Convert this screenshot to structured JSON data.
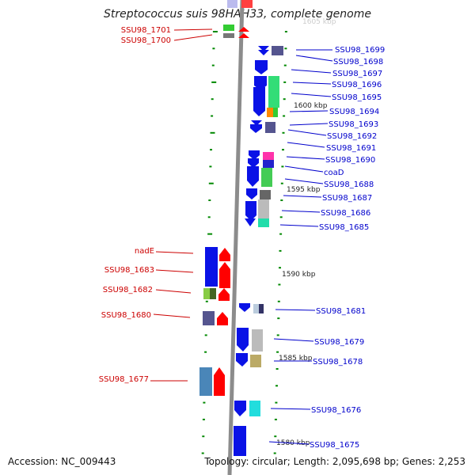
{
  "title": "Streptococcus suis 98HAH33, complete genome",
  "accession": "Accession: NC_009443",
  "topology": "Topology: circular; Length: 2,095,698 bp; Genes: 2,253",
  "axis_labels": [
    "1600 kbp",
    "1595 kbp",
    "1590 kbp",
    "1585 kbp",
    "1580 kbp",
    "1605 kbp"
  ],
  "colors": {
    "backbone": "#8c8c8c",
    "forward_gene": "#0a12e6",
    "reverse_gene": "#ff0000",
    "label_forward": "#0000cc",
    "label_reverse": "#cc0000",
    "tick": "#008800"
  },
  "genes_left": [
    {
      "label": "SSU98_1701"
    },
    {
      "label": "SSU98_1700"
    },
    {
      "label": "nadE"
    },
    {
      "label": "SSU98_1683"
    },
    {
      "label": "SSU98_1682"
    },
    {
      "label": "SSU98_1680"
    },
    {
      "label": "SSU98_1677"
    }
  ],
  "genes_right": [
    {
      "label": "SSU98_1699"
    },
    {
      "label": "SSU98_1698"
    },
    {
      "label": "SSU98_1697"
    },
    {
      "label": "SSU98_1696"
    },
    {
      "label": "SSU98_1695"
    },
    {
      "label": "SSU98_1694"
    },
    {
      "label": "SSU98_1693"
    },
    {
      "label": "SSU98_1692"
    },
    {
      "label": "SSU98_1691"
    },
    {
      "label": "SSU98_1690"
    },
    {
      "label": "coaD"
    },
    {
      "label": "SSU98_1688"
    },
    {
      "label": "SSU98_1687"
    },
    {
      "label": "SSU98_1686"
    },
    {
      "label": "SSU98_1685"
    },
    {
      "label": "SSU98_1681"
    },
    {
      "label": "SSU98_1679"
    },
    {
      "label": "SSU98_1678"
    },
    {
      "label": "SSU98_1676"
    },
    {
      "label": "SSU98_1675"
    }
  ]
}
